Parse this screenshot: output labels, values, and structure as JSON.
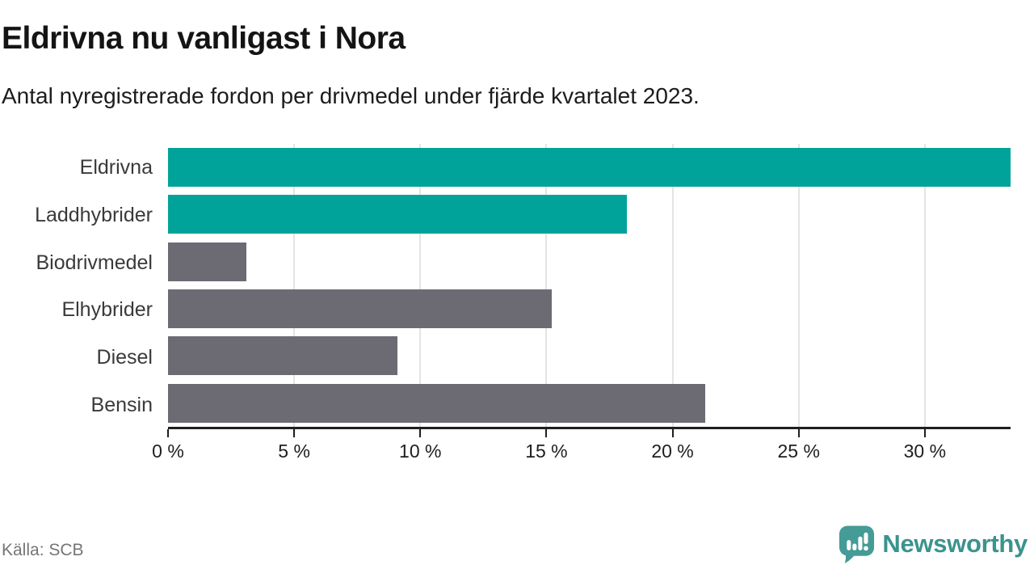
{
  "chart_data": {
    "type": "bar",
    "orientation": "horizontal",
    "title": "Eldrivna nu vanligast i Nora",
    "subtitle": "Antal nyregistrerade fordon per drivmedel under fjärde kvartalet 2023.",
    "categories": [
      "Eldrivna",
      "Laddhybrider",
      "Biodrivmedel",
      "Elhybrider",
      "Diesel",
      "Bensin"
    ],
    "values": [
      33.4,
      18.2,
      3.1,
      15.2,
      9.1,
      21.3
    ],
    "unit": "%",
    "xlim": [
      0,
      33.4
    ],
    "xticks": [
      0,
      5,
      10,
      15,
      20,
      25,
      30
    ],
    "xtick_labels": [
      "0 %",
      "5 %",
      "10 %",
      "15 %",
      "20 %",
      "25 %",
      "30 %"
    ],
    "grid": "vertical",
    "legend": "none",
    "colors": {
      "highlight": "#00a399",
      "default": "#6c6b73",
      "bar_colors": [
        "#00a399",
        "#00a399",
        "#6c6b73",
        "#6c6b73",
        "#6c6b73",
        "#6c6b73"
      ],
      "gridline": "#e4e4e4",
      "axis": "#1f1f1f"
    }
  },
  "footer": {
    "source": "Källa: SCB",
    "brand": "Newsworthy",
    "brand_color": "#3b938d",
    "brand_icon": "newsworthy-speech-bubble-chart-icon",
    "brand_icon_color": "#459b95"
  }
}
